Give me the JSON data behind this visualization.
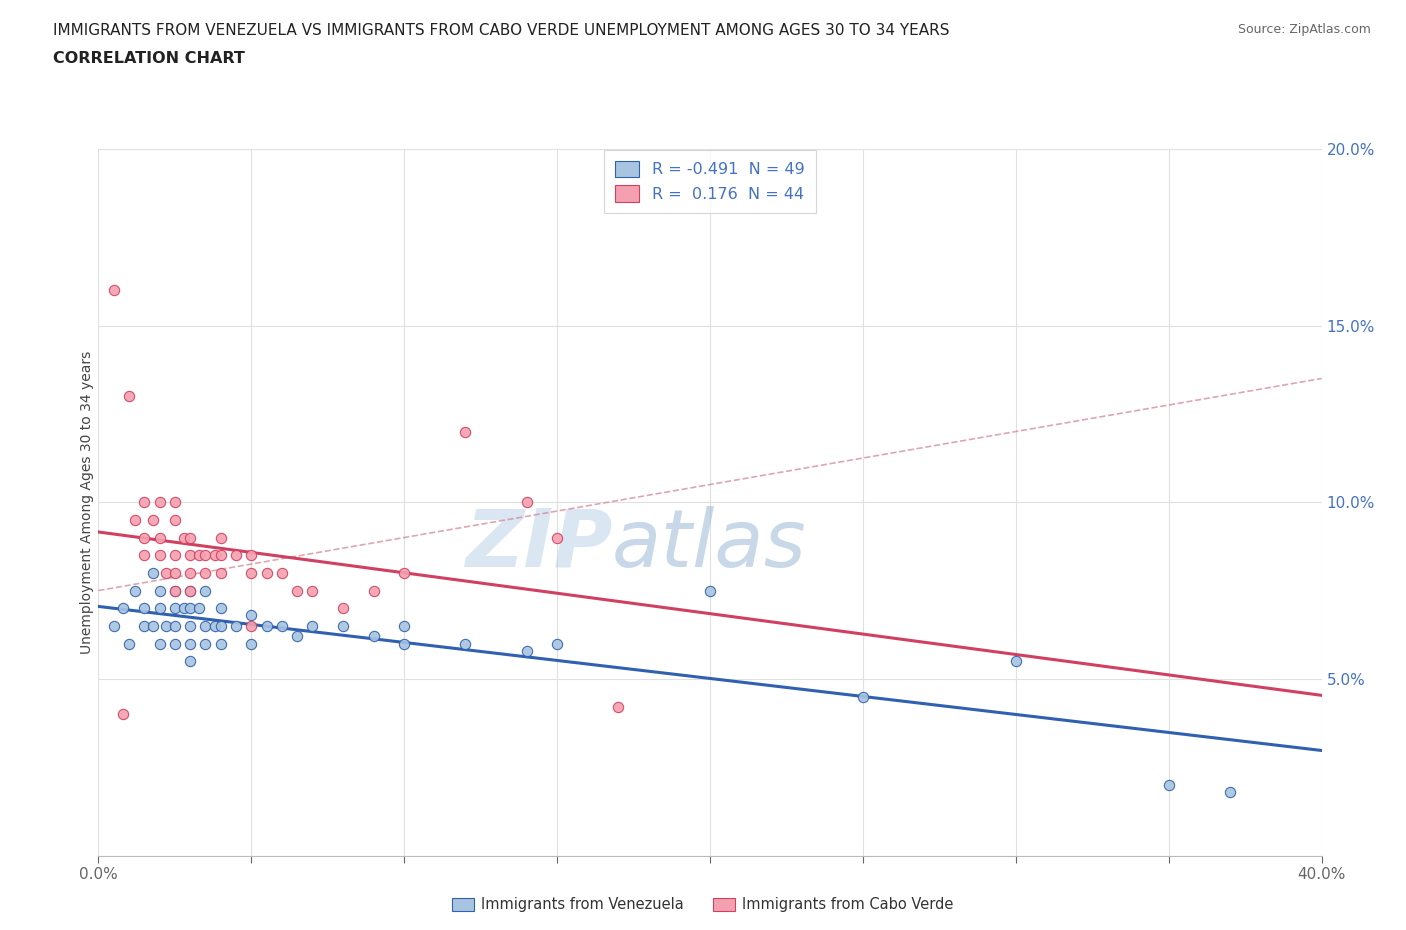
{
  "title_line1": "IMMIGRANTS FROM VENEZUELA VS IMMIGRANTS FROM CABO VERDE UNEMPLOYMENT AMONG AGES 30 TO 34 YEARS",
  "title_line2": "CORRELATION CHART",
  "source": "Source: ZipAtlas.com",
  "ylabel": "Unemployment Among Ages 30 to 34 years",
  "xlim": [
    0.0,
    0.4
  ],
  "ylim": [
    0.0,
    0.2
  ],
  "xticks": [
    0.0,
    0.05,
    0.1,
    0.15,
    0.2,
    0.25,
    0.3,
    0.35,
    0.4
  ],
  "yticks": [
    0.0,
    0.05,
    0.1,
    0.15,
    0.2
  ],
  "legend_r_venezuela": "-0.491",
  "legend_n_venezuela": "49",
  "legend_r_caboverde": "0.176",
  "legend_n_caboverde": "44",
  "color_venezuela": "#a8c4e0",
  "color_caboverde": "#f4a0b0",
  "line_color_venezuela": "#3060b0",
  "line_color_caboverde": "#d04060",
  "watermark_left": "ZIP",
  "watermark_right": "atlas",
  "venezuela_points": [
    [
      0.005,
      0.065
    ],
    [
      0.008,
      0.07
    ],
    [
      0.01,
      0.06
    ],
    [
      0.012,
      0.075
    ],
    [
      0.015,
      0.07
    ],
    [
      0.015,
      0.065
    ],
    [
      0.018,
      0.08
    ],
    [
      0.018,
      0.065
    ],
    [
      0.02,
      0.075
    ],
    [
      0.02,
      0.07
    ],
    [
      0.02,
      0.06
    ],
    [
      0.022,
      0.065
    ],
    [
      0.025,
      0.075
    ],
    [
      0.025,
      0.07
    ],
    [
      0.025,
      0.065
    ],
    [
      0.025,
      0.06
    ],
    [
      0.028,
      0.07
    ],
    [
      0.03,
      0.075
    ],
    [
      0.03,
      0.07
    ],
    [
      0.03,
      0.065
    ],
    [
      0.03,
      0.06
    ],
    [
      0.03,
      0.055
    ],
    [
      0.033,
      0.07
    ],
    [
      0.035,
      0.075
    ],
    [
      0.035,
      0.065
    ],
    [
      0.035,
      0.06
    ],
    [
      0.038,
      0.065
    ],
    [
      0.04,
      0.07
    ],
    [
      0.04,
      0.065
    ],
    [
      0.04,
      0.06
    ],
    [
      0.045,
      0.065
    ],
    [
      0.05,
      0.068
    ],
    [
      0.05,
      0.06
    ],
    [
      0.055,
      0.065
    ],
    [
      0.06,
      0.065
    ],
    [
      0.065,
      0.062
    ],
    [
      0.07,
      0.065
    ],
    [
      0.08,
      0.065
    ],
    [
      0.09,
      0.062
    ],
    [
      0.1,
      0.065
    ],
    [
      0.1,
      0.06
    ],
    [
      0.12,
      0.06
    ],
    [
      0.14,
      0.058
    ],
    [
      0.15,
      0.06
    ],
    [
      0.2,
      0.075
    ],
    [
      0.25,
      0.045
    ],
    [
      0.3,
      0.055
    ],
    [
      0.35,
      0.02
    ],
    [
      0.37,
      0.018
    ]
  ],
  "caboverde_points": [
    [
      0.005,
      0.16
    ],
    [
      0.008,
      0.04
    ],
    [
      0.01,
      0.13
    ],
    [
      0.012,
      0.095
    ],
    [
      0.015,
      0.1
    ],
    [
      0.015,
      0.09
    ],
    [
      0.015,
      0.085
    ],
    [
      0.018,
      0.095
    ],
    [
      0.02,
      0.1
    ],
    [
      0.02,
      0.09
    ],
    [
      0.02,
      0.085
    ],
    [
      0.022,
      0.08
    ],
    [
      0.025,
      0.1
    ],
    [
      0.025,
      0.095
    ],
    [
      0.025,
      0.085
    ],
    [
      0.025,
      0.08
    ],
    [
      0.025,
      0.075
    ],
    [
      0.028,
      0.09
    ],
    [
      0.03,
      0.09
    ],
    [
      0.03,
      0.085
    ],
    [
      0.03,
      0.08
    ],
    [
      0.03,
      0.075
    ],
    [
      0.033,
      0.085
    ],
    [
      0.035,
      0.085
    ],
    [
      0.035,
      0.08
    ],
    [
      0.038,
      0.085
    ],
    [
      0.04,
      0.09
    ],
    [
      0.04,
      0.085
    ],
    [
      0.04,
      0.08
    ],
    [
      0.045,
      0.085
    ],
    [
      0.05,
      0.085
    ],
    [
      0.05,
      0.08
    ],
    [
      0.05,
      0.065
    ],
    [
      0.055,
      0.08
    ],
    [
      0.06,
      0.08
    ],
    [
      0.065,
      0.075
    ],
    [
      0.07,
      0.075
    ],
    [
      0.08,
      0.07
    ],
    [
      0.09,
      0.075
    ],
    [
      0.1,
      0.08
    ],
    [
      0.12,
      0.12
    ],
    [
      0.14,
      0.1
    ],
    [
      0.15,
      0.09
    ],
    [
      0.17,
      0.042
    ]
  ],
  "dashed_line_start_x": 0.0,
  "dashed_line_end_x": 0.4,
  "dashed_line_start_y": 0.075,
  "dashed_line_end_y": 0.135
}
